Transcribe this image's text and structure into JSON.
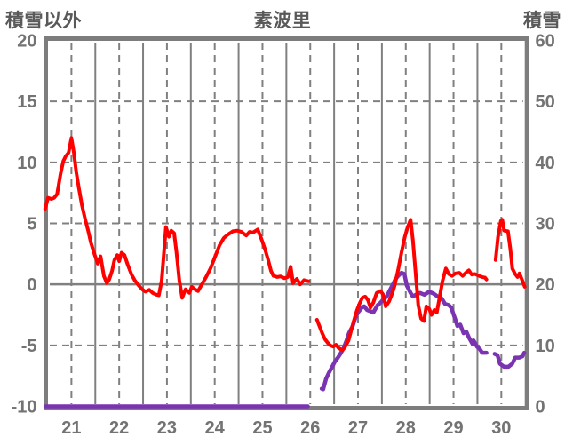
{
  "chart_data": {
    "type": "line",
    "title": "素波里",
    "left_axis": {
      "label": "積雪以外",
      "min": -10,
      "max": 20,
      "ticks": [
        20,
        15,
        10,
        5,
        0,
        -5,
        -10
      ]
    },
    "right_axis": {
      "label": "積雪",
      "min": 0,
      "max": 60,
      "ticks": [
        60,
        50,
        40,
        30,
        20,
        10,
        0
      ]
    },
    "x_axis": {
      "min": 20.5,
      "max": 30.5,
      "ticks": [
        21,
        22,
        23,
        24,
        25,
        26,
        27,
        28,
        29,
        30
      ]
    },
    "grid": {
      "border_color": "#7d7d7d",
      "line_color": "#808080",
      "tick_label_color": "#737373",
      "title_color": "#595959",
      "vertical_solid_at": "day boundaries",
      "vertical_dashed_at": "day centers",
      "horizontal_dashed_at": [
        15,
        10,
        5,
        -5
      ],
      "zero_line": "solid"
    },
    "series": [
      {
        "id": "purple",
        "name": "snow-depth-line",
        "axis": "right",
        "color": "#7a34b2",
        "width": 4.5,
        "segments": [
          [
            [
              20.46,
              0
            ],
            [
              25.95,
              0
            ]
          ],
          [
            [
              26.24,
              2.9
            ],
            [
              26.27,
              2.8
            ],
            [
              26.33,
              4.5
            ],
            [
              26.39,
              5.5
            ],
            [
              26.44,
              6.2
            ],
            [
              26.52,
              7.4
            ],
            [
              26.57,
              7.9
            ],
            [
              26.63,
              8.6
            ],
            [
              26.7,
              9.6
            ],
            [
              26.76,
              10.8
            ],
            [
              26.81,
              12.0
            ],
            [
              26.89,
              13.2
            ],
            [
              26.94,
              14.4
            ],
            [
              27.0,
              15.4
            ],
            [
              27.08,
              16.2
            ],
            [
              27.13,
              16.4
            ],
            [
              27.19,
              15.8
            ],
            [
              27.26,
              15.6
            ],
            [
              27.32,
              15.4
            ],
            [
              27.41,
              16.6
            ],
            [
              27.47,
              17.0
            ],
            [
              27.54,
              17.6
            ],
            [
              27.6,
              18.0
            ],
            [
              27.65,
              18.8
            ],
            [
              27.73,
              20.0
            ],
            [
              27.78,
              20.8
            ],
            [
              27.84,
              21.4
            ],
            [
              27.91,
              21.9
            ],
            [
              27.97,
              21.7
            ],
            [
              28.02,
              19.8
            ],
            [
              28.1,
              18.6
            ],
            [
              28.15,
              18.0
            ],
            [
              28.21,
              18.3
            ],
            [
              28.3,
              18.6
            ],
            [
              28.39,
              18.3
            ],
            [
              28.49,
              18.8
            ],
            [
              28.58,
              18.5
            ],
            [
              28.67,
              18.0
            ],
            [
              28.75,
              17.7
            ],
            [
              28.82,
              16.8
            ],
            [
              28.9,
              16.6
            ],
            [
              28.95,
              16.2
            ],
            [
              29.03,
              14.4
            ],
            [
              29.08,
              13.2
            ],
            [
              29.14,
              13.4
            ],
            [
              29.21,
              12.0
            ],
            [
              29.27,
              12.2
            ],
            [
              29.32,
              11.3
            ],
            [
              29.4,
              10.2
            ],
            [
              29.42,
              10.8
            ],
            [
              29.49,
              9.8
            ],
            [
              29.55,
              9.4
            ],
            [
              29.6,
              8.8
            ],
            [
              29.69,
              8.8
            ]
          ],
          [
            [
              29.86,
              8.6
            ],
            [
              29.92,
              8.4
            ],
            [
              29.97,
              7.0
            ],
            [
              30.06,
              6.5
            ],
            [
              30.15,
              6.5
            ],
            [
              30.23,
              7.0
            ],
            [
              30.29,
              8.0
            ],
            [
              30.38,
              8.0
            ],
            [
              30.44,
              8.2
            ],
            [
              30.48,
              8.8
            ]
          ]
        ]
      },
      {
        "id": "red",
        "name": "non-snow-line",
        "axis": "left",
        "color": "#ff0000",
        "width": 4,
        "segments": [
          [
            [
              20.45,
              6.2
            ],
            [
              20.51,
              7.1
            ],
            [
              20.58,
              7.0
            ],
            [
              20.64,
              7.1
            ],
            [
              20.7,
              7.4
            ],
            [
              20.77,
              9.0
            ],
            [
              20.83,
              10.1
            ],
            [
              20.88,
              10.5
            ],
            [
              20.94,
              10.8
            ],
            [
              21.0,
              12.0
            ],
            [
              21.05,
              10.8
            ],
            [
              21.1,
              9.2
            ],
            [
              21.16,
              7.8
            ],
            [
              21.22,
              6.5
            ],
            [
              21.29,
              5.3
            ],
            [
              21.35,
              4.4
            ],
            [
              21.41,
              3.4
            ],
            [
              21.48,
              2.5
            ],
            [
              21.55,
              1.7
            ],
            [
              21.61,
              2.3
            ],
            [
              21.68,
              0.7
            ],
            [
              21.74,
              0.1
            ],
            [
              21.79,
              0.4
            ],
            [
              21.85,
              1.1
            ],
            [
              21.9,
              2.0
            ],
            [
              21.96,
              2.4
            ],
            [
              22.0,
              1.9
            ],
            [
              22.05,
              2.6
            ],
            [
              22.11,
              2.4
            ],
            [
              22.18,
              1.6
            ],
            [
              22.26,
              0.8
            ],
            [
              22.33,
              0.3
            ],
            [
              22.41,
              -0.1
            ],
            [
              22.48,
              -0.4
            ],
            [
              22.55,
              -0.6
            ],
            [
              22.63,
              -0.45
            ],
            [
              22.7,
              -0.7
            ],
            [
              22.78,
              -0.85
            ],
            [
              22.83,
              -0.9
            ],
            [
              22.89,
              0.3
            ],
            [
              22.95,
              3.2
            ],
            [
              22.98,
              4.7
            ],
            [
              23.04,
              3.9
            ],
            [
              23.09,
              4.4
            ],
            [
              23.15,
              4.2
            ],
            [
              23.2,
              2.6
            ],
            [
              23.26,
              0.3
            ],
            [
              23.32,
              -1.1
            ],
            [
              23.39,
              -0.4
            ],
            [
              23.47,
              -0.7
            ],
            [
              23.52,
              -0.2
            ],
            [
              23.6,
              -0.45
            ],
            [
              23.65,
              -0.55
            ],
            [
              23.73,
              0.0
            ],
            [
              23.82,
              0.6
            ],
            [
              23.91,
              1.3
            ],
            [
              24.0,
              2.2
            ],
            [
              24.1,
              3.2
            ],
            [
              24.19,
              3.8
            ],
            [
              24.28,
              4.1
            ],
            [
              24.38,
              4.35
            ],
            [
              24.47,
              4.4
            ],
            [
              24.56,
              4.3
            ],
            [
              24.66,
              4.0
            ],
            [
              24.73,
              4.3
            ],
            [
              24.8,
              4.25
            ],
            [
              24.9,
              4.5
            ],
            [
              24.97,
              3.8
            ],
            [
              25.05,
              2.9
            ],
            [
              25.12,
              2.0
            ],
            [
              25.18,
              1.1
            ],
            [
              25.23,
              0.7
            ],
            [
              25.31,
              0.6
            ],
            [
              25.38,
              0.65
            ],
            [
              25.46,
              0.5
            ],
            [
              25.53,
              0.6
            ],
            [
              25.59,
              1.45
            ],
            [
              25.64,
              0.1
            ],
            [
              25.72,
              0.45
            ],
            [
              25.79,
              0.0
            ],
            [
              25.87,
              0.35
            ],
            [
              25.96,
              0.25
            ]
          ],
          [
            [
              26.14,
              -2.9
            ],
            [
              26.2,
              -3.5
            ],
            [
              26.25,
              -4.0
            ],
            [
              26.31,
              -4.5
            ],
            [
              26.37,
              -4.8
            ],
            [
              26.42,
              -5.0
            ],
            [
              26.48,
              -5.1
            ],
            [
              26.54,
              -4.95
            ],
            [
              26.59,
              -5.2
            ],
            [
              26.67,
              -5.4
            ],
            [
              26.72,
              -5.2
            ],
            [
              26.8,
              -4.6
            ],
            [
              26.85,
              -3.9
            ],
            [
              26.91,
              -3.0
            ],
            [
              26.98,
              -2.1
            ],
            [
              27.04,
              -1.5
            ],
            [
              27.09,
              -1.1
            ],
            [
              27.15,
              -1.0
            ],
            [
              27.21,
              -1.3
            ],
            [
              27.26,
              -1.9
            ],
            [
              27.32,
              -1.5
            ],
            [
              27.39,
              -0.7
            ],
            [
              27.47,
              -0.55
            ],
            [
              27.52,
              -0.8
            ],
            [
              27.58,
              -1.8
            ],
            [
              27.65,
              -1.4
            ],
            [
              27.71,
              -0.8
            ],
            [
              27.76,
              -0.2
            ],
            [
              27.84,
              1.2
            ],
            [
              27.91,
              2.6
            ],
            [
              27.98,
              3.9
            ],
            [
              28.04,
              4.7
            ],
            [
              28.1,
              5.3
            ],
            [
              28.15,
              3.6
            ],
            [
              28.21,
              0.7
            ],
            [
              28.26,
              -1.7
            ],
            [
              28.32,
              -2.8
            ],
            [
              28.38,
              -3.0
            ],
            [
              28.43,
              -1.8
            ],
            [
              28.49,
              -2.0
            ],
            [
              28.54,
              -2.5
            ],
            [
              28.6,
              -2.1
            ],
            [
              28.65,
              -2.3
            ],
            [
              28.71,
              -1.0
            ],
            [
              28.77,
              0.3
            ],
            [
              28.84,
              1.3
            ],
            [
              28.9,
              0.85
            ],
            [
              28.97,
              0.7
            ],
            [
              29.04,
              0.9
            ],
            [
              29.12,
              0.95
            ],
            [
              29.19,
              0.7
            ],
            [
              29.27,
              1.0
            ],
            [
              29.32,
              1.15
            ],
            [
              29.38,
              0.8
            ],
            [
              29.45,
              0.85
            ],
            [
              29.53,
              0.7
            ],
            [
              29.6,
              0.6
            ],
            [
              29.66,
              0.55
            ],
            [
              29.69,
              0.4
            ]
          ],
          [
            [
              29.88,
              2.0
            ],
            [
              29.93,
              3.9
            ],
            [
              29.99,
              5.2
            ],
            [
              30.02,
              5.3
            ],
            [
              30.06,
              4.4
            ],
            [
              30.14,
              4.35
            ],
            [
              30.19,
              2.9
            ],
            [
              30.23,
              1.3
            ],
            [
              30.29,
              0.85
            ],
            [
              30.34,
              0.6
            ],
            [
              30.38,
              0.9
            ],
            [
              30.44,
              0.3
            ],
            [
              30.49,
              -0.2
            ]
          ]
        ]
      }
    ]
  }
}
